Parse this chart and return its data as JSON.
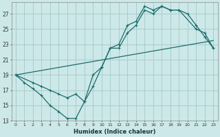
{
  "xlabel": "Humidex (Indice chaleur)",
  "bg_color": "#cce8e8",
  "grid_color": "#aacccc",
  "line_color": "#1a6b6b",
  "xlim": [
    -0.5,
    23.5
  ],
  "ylim": [
    13,
    28.5
  ],
  "yticks": [
    13,
    15,
    17,
    19,
    21,
    23,
    25,
    27
  ],
  "xticks": [
    0,
    1,
    2,
    3,
    4,
    5,
    6,
    7,
    8,
    9,
    10,
    11,
    12,
    13,
    14,
    15,
    16,
    17,
    18,
    19,
    20,
    21,
    22,
    23
  ],
  "line1_x": [
    0,
    1,
    2,
    3,
    4,
    5,
    6,
    7,
    8,
    9,
    10,
    11,
    12,
    13,
    14,
    15,
    16,
    17,
    18,
    19,
    20,
    21,
    22,
    23
  ],
  "line1_y": [
    19,
    18,
    17.2,
    16.3,
    15.0,
    14.2,
    13.3,
    13.3,
    15.5,
    17.5,
    20.0,
    22.5,
    23.0,
    25.5,
    26.0,
    28.0,
    27.5,
    28.0,
    27.5,
    27.5,
    27.0,
    25.5,
    24.0,
    22.5
  ],
  "line2_x": [
    0,
    2,
    3,
    4,
    5,
    6,
    7,
    8,
    9,
    10,
    11,
    12,
    13,
    14,
    15,
    16,
    17,
    18,
    19,
    21,
    22,
    23
  ],
  "line2_y": [
    19,
    18,
    17.5,
    17.0,
    16.5,
    16.0,
    16.5,
    15.5,
    19.0,
    20.0,
    22.5,
    22.5,
    24.5,
    25.5,
    27.5,
    27.0,
    28.0,
    27.5,
    27.5,
    25.0,
    24.5,
    22.5
  ],
  "line3_x": [
    0,
    23
  ],
  "line3_y": [
    19,
    23.5
  ]
}
